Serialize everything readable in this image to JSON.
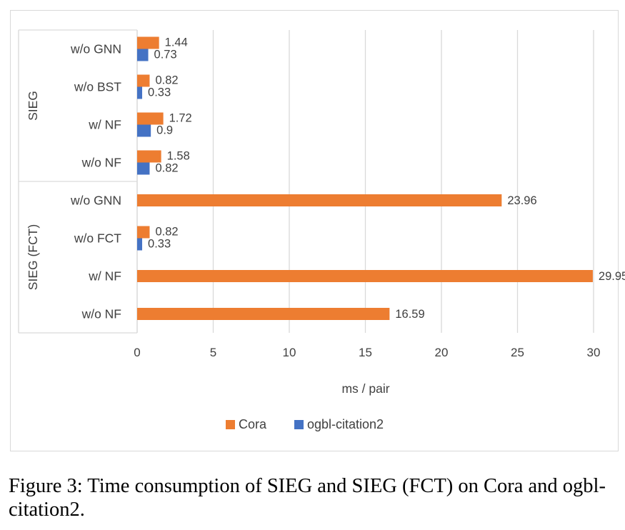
{
  "colors": {
    "cora": "#ed7d31",
    "ogbl": "#4472c4",
    "grid": "#d9d9d9",
    "text": "#404040"
  },
  "chart_data": {
    "type": "bar",
    "orientation": "horizontal",
    "xlabel": "ms / pair",
    "xlim": [
      0,
      30
    ],
    "xticks": [
      "0",
      "5",
      "10",
      "15",
      "20",
      "25",
      "30"
    ],
    "grid": true,
    "legend_position": "bottom",
    "groups": [
      {
        "label": "SIEG",
        "categories": [
          "w/o GNN",
          "w/o BST",
          "w/ NF",
          "w/o NF"
        ]
      },
      {
        "label": "SIEG (FCT)",
        "categories": [
          "w/o GNN",
          "w/o FCT",
          "w/ NF",
          "w/o NF"
        ]
      }
    ],
    "series": [
      {
        "name": "Cora",
        "values": [
          1.44,
          0.82,
          1.72,
          1.58,
          23.96,
          0.82,
          29.95,
          16.59
        ],
        "labels": [
          "1.44",
          "0.82",
          "1.72",
          "1.58",
          "23.96",
          "0.82",
          "29.95",
          "16.59"
        ]
      },
      {
        "name": "ogbl-citation2",
        "values": [
          0.73,
          0.33,
          0.9,
          0.82,
          null,
          0.33,
          null,
          null
        ],
        "labels": [
          "0.73",
          "0.33",
          "0.9",
          "0.82",
          "",
          "0.33",
          "",
          ""
        ]
      }
    ]
  },
  "caption": "Figure 3: Time consumption of SIEG and SIEG (FCT) on Cora and ogbl-citation2."
}
